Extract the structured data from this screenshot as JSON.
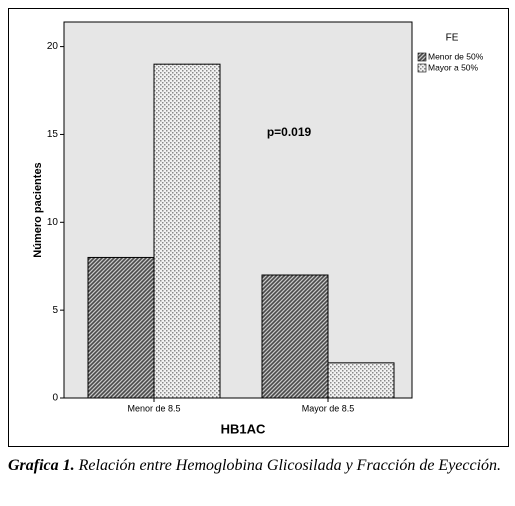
{
  "chart_data": {
    "type": "bar",
    "x_label": "HB1AC",
    "y_label": "Número pacientes",
    "annotation": "p=0.019",
    "legend_title": "FE",
    "legend": "top-right",
    "categories": [
      "Menor de 8.5",
      "Mayor de 8.5"
    ],
    "series": [
      {
        "name": "Menor de 50%",
        "color": "#4a4a4a",
        "pattern": "hatch",
        "values": [
          8,
          7
        ]
      },
      {
        "name": "Mayor a 50%",
        "color": "#8a8a8a",
        "pattern": "dots",
        "values": [
          19,
          2
        ]
      }
    ],
    "ylim": [
      0,
      21.4
    ],
    "yticks": [
      0,
      5,
      10,
      15,
      20
    ],
    "background": "#e6e6e6"
  },
  "caption": {
    "label": "Grafica 1.",
    "text": "Relación entre Hemoglobina Glicosilada y Fracción de Eyección."
  }
}
